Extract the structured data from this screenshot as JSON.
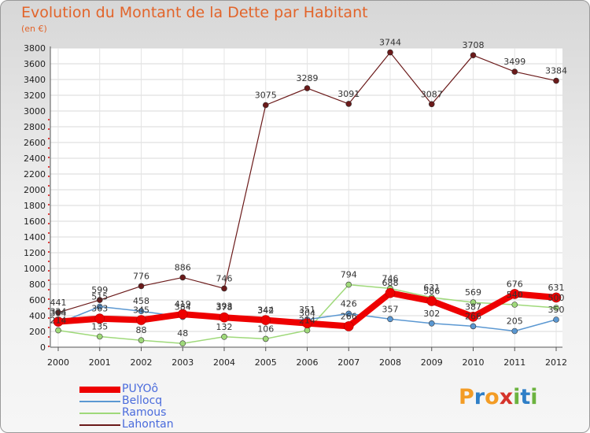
{
  "title": "Evolution du Montant de la Dette par Habitant",
  "subtitle": "(en €)",
  "logo": {
    "letters": [
      "P",
      "r",
      "o",
      "x",
      "i",
      "t",
      "i"
    ],
    "colors": [
      "#f39c25",
      "#2f7fc7",
      "#f39c25",
      "#d5332b",
      "#6cb33f",
      "#2f7fc7",
      "#6cb33f"
    ]
  },
  "chart_data": {
    "type": "line",
    "x": [
      "2000",
      "2001",
      "2002",
      "2003",
      "2004",
      "2005",
      "2006",
      "2007",
      "2008",
      "2009",
      "2010",
      "2011",
      "2012"
    ],
    "ylim": [
      0,
      3800
    ],
    "yticks": [
      "0",
      "200",
      "400",
      "600",
      "800",
      "1000",
      "1200",
      "1400",
      "1600",
      "1800",
      "2000",
      "2200",
      "2400",
      "2600",
      "2800",
      "3000",
      "3200",
      "3400",
      "3600",
      "3800"
    ],
    "legend_position": "bottom-left",
    "series": [
      {
        "name": "Lahontan",
        "color": "#6b1a1a",
        "width": 1.2,
        "values": [
          441,
          599,
          776,
          886,
          746,
          3075,
          3289,
          3091,
          3744,
          3087,
          3708,
          3499,
          3384
        ]
      },
      {
        "name": "Ramous",
        "color": "#9fd97a",
        "width": 1.5,
        "values": [
          214,
          135,
          88,
          48,
          132,
          106,
          214,
          794,
          746,
          631,
          569,
          540,
          500
        ]
      },
      {
        "name": "Bellocq",
        "color": "#5b98d2",
        "width": 1.5,
        "values": [
          304,
          515,
          458,
          384,
          393,
          342,
          351,
          426,
          357,
          302,
          266,
          205,
          350
        ]
      },
      {
        "name": "PUYOô",
        "color": "#ee0000",
        "width": 8,
        "values": [
          324,
          363,
          345,
          419,
          378,
          344,
          304,
          266,
          688,
          586,
          387,
          676,
          631
        ]
      }
    ],
    "point_labels": [
      {
        "series": "Lahontan",
        "labels": [
          "441",
          "599",
          "776",
          "886",
          "746",
          "3075",
          "3289",
          "3091",
          "3744",
          "3087",
          "3708",
          "3499",
          "3384"
        ]
      },
      {
        "series": "Ramous",
        "labels": [
          "214",
          "135",
          "88",
          "48",
          "132",
          "106",
          "214",
          "794",
          "746",
          "631",
          "569",
          "540",
          "500"
        ]
      },
      {
        "series": "Bellocq",
        "labels": [
          "304",
          "515",
          "458",
          "384",
          "393",
          "342",
          "351",
          "426",
          "357",
          "302",
          "266",
          "205",
          "350"
        ]
      },
      {
        "series": "PUYOô",
        "labels": [
          "324",
          "363",
          "345",
          "419",
          "378",
          "344",
          "304",
          "266",
          "688",
          "586",
          "387",
          "676",
          "631"
        ]
      }
    ]
  },
  "legend": [
    {
      "label": "PUYOô",
      "color": "#ee0000",
      "height": 8
    },
    {
      "label": "Bellocq",
      "color": "#5b98d2",
      "height": 2
    },
    {
      "label": "Ramous",
      "color": "#9fd97a",
      "height": 2
    },
    {
      "label": "Lahontan",
      "color": "#6b1a1a",
      "height": 2
    }
  ]
}
